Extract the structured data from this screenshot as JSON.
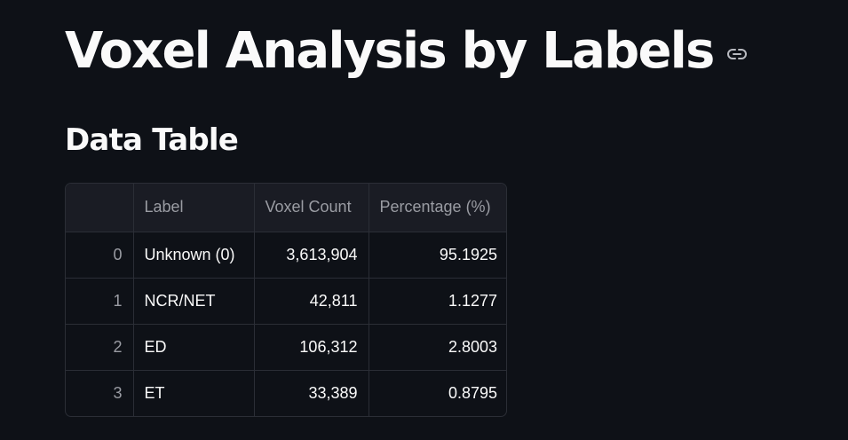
{
  "header": {
    "title": "Voxel Analysis by Labels",
    "anchor_icon": "link-icon"
  },
  "section": {
    "title": "Data Table"
  },
  "table": {
    "columns": [
      "",
      "Label",
      "Voxel Count",
      "Percentage (%)"
    ],
    "rows": [
      {
        "index": "0",
        "label": "Unknown (0)",
        "voxel_count": "3,613,904",
        "percentage": "95.1925"
      },
      {
        "index": "1",
        "label": "NCR/NET",
        "voxel_count": "42,811",
        "percentage": "1.1277"
      },
      {
        "index": "2",
        "label": "ED",
        "voxel_count": "106,312",
        "percentage": "2.8003"
      },
      {
        "index": "3",
        "label": "ET",
        "voxel_count": "33,389",
        "percentage": "0.8795"
      }
    ]
  },
  "colors": {
    "background": "#0e1117",
    "text": "#fafafa",
    "muted_text": "#9a9ca3",
    "header_bg": "#1a1c24",
    "border": "#2b2e36"
  }
}
